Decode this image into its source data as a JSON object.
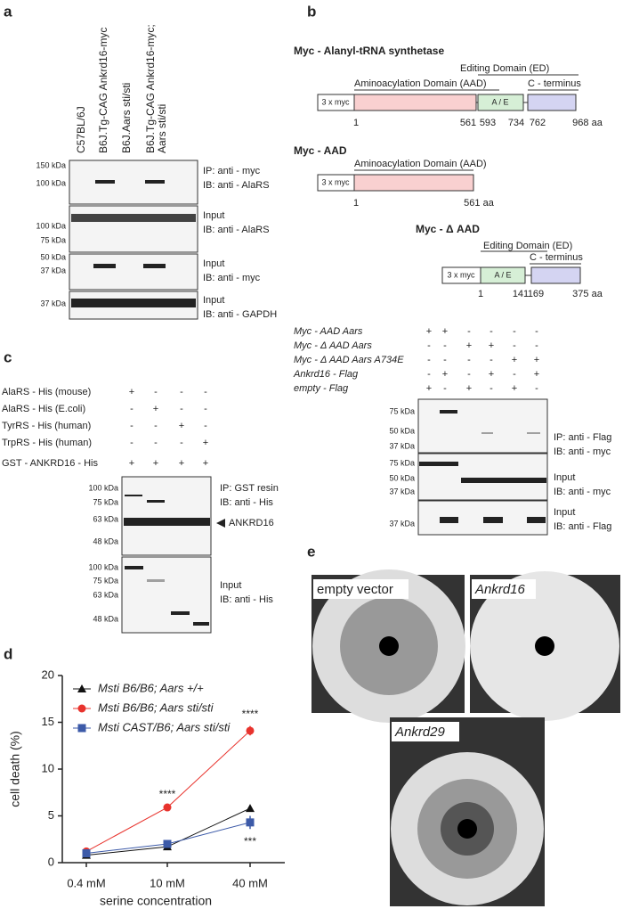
{
  "panel_a": {
    "label": "a",
    "columns": [
      [
        "C57BL/6J"
      ],
      [
        "B6J.Tg-CAG Ankrd16-myc"
      ],
      [
        "B6J.Aars sti/sti"
      ],
      [
        "B6J.Tg-CAG Ankrd16-myc;",
        "Aars sti/sti"
      ]
    ],
    "blots": [
      {
        "markers": [
          "150 kDa",
          "100 kDa"
        ],
        "lines": [
          "IP: anti - myc",
          "IB: anti - AlaRS"
        ]
      },
      {
        "markers": [
          "100 kDa",
          "75 kDa"
        ],
        "lines": [
          "Input",
          "IB: anti - AlaRS"
        ]
      },
      {
        "markers": [
          "50 kDa",
          "37 kDa"
        ],
        "lines": [
          "Input",
          "IB: anti - myc"
        ]
      },
      {
        "markers": [
          "37 kDa"
        ],
        "lines": [
          "Input",
          "IB: anti - GAPDH"
        ]
      }
    ]
  },
  "panel_b": {
    "label": "b",
    "constructs": [
      {
        "title": "Myc - Alanyl-tRNA synthetase",
        "tag": "3 x myc",
        "domains": [
          "Aminoacylation Domain (AAD)",
          "Editing Domain (ED)",
          "C - terminus"
        ],
        "box": "A / E",
        "positions": [
          "1",
          "561",
          "593",
          "734",
          "762",
          "968 aa"
        ]
      },
      {
        "title": "Myc - AAD",
        "tag": "3 x myc",
        "domains": [
          "Aminoacylation Domain (AAD)"
        ],
        "positions": [
          "1",
          "561 aa"
        ]
      },
      {
        "title": "Myc - Δ AAD",
        "tag": "3 x myc",
        "domains": [
          "Editing Domain (ED)",
          "C - terminus"
        ],
        "box": "A / E",
        "positions": [
          "1",
          "141",
          "169",
          "375 aa"
        ]
      }
    ],
    "conditions": [
      {
        "label": "Myc - AAD Aars",
        "signs": [
          "+",
          "+",
          "-",
          "-",
          "-",
          "-"
        ]
      },
      {
        "label": "Myc - Δ AAD Aars",
        "signs": [
          "-",
          "-",
          "+",
          "+",
          "-",
          "-"
        ]
      },
      {
        "label": "Myc - Δ AAD Aars A734E",
        "signs": [
          "-",
          "-",
          "-",
          "-",
          "+",
          "+"
        ]
      },
      {
        "label": "Ankrd16 - Flag",
        "signs": [
          "-",
          "+",
          "-",
          "+",
          "-",
          "+"
        ]
      },
      {
        "label": "empty - Flag",
        "signs": [
          "+",
          "-",
          "+",
          "-",
          "+",
          "-"
        ]
      }
    ],
    "blots": [
      {
        "markers": [
          "75 kDa",
          "50 kDa",
          "37 kDa"
        ],
        "lines": [
          "IP: anti - Flag",
          "IB: anti - myc"
        ]
      },
      {
        "markers": [
          "75 kDa",
          "50 kDa",
          "37 kDa"
        ],
        "lines": [
          "Input",
          "IB: anti - myc"
        ]
      },
      {
        "markers": [
          "37 kDa"
        ],
        "lines": [
          "Input",
          "IB: anti - Flag"
        ]
      }
    ]
  },
  "panel_c": {
    "label": "c",
    "conditions": [
      {
        "label": "AlaRS - His (mouse)",
        "signs": [
          "+",
          "-",
          "-",
          "-"
        ]
      },
      {
        "label": "AlaRS - His (E.coli)",
        "signs": [
          "-",
          "+",
          "-",
          "-"
        ]
      },
      {
        "label": "TyrRS - His (human)",
        "signs": [
          "-",
          "-",
          "+",
          "-"
        ]
      },
      {
        "label": "TrpRS - His (human)",
        "signs": [
          "-",
          "-",
          "-",
          "+"
        ]
      },
      {
        "label": "GST - ANKRD16 - His",
        "signs": [
          "+",
          "+",
          "+",
          "+"
        ]
      }
    ],
    "blots": [
      {
        "markers": [
          "100 kDa",
          "75 kDa",
          "63 kDa",
          "48 kDa"
        ],
        "lines": [
          "IP: GST resin",
          "IB: anti - His"
        ],
        "arrow": "ANKRD16"
      },
      {
        "markers": [
          "100 kDa",
          "75 kDa",
          "63 kDa",
          "48 kDa"
        ],
        "lines": [
          "Input",
          "IB: anti - His"
        ]
      }
    ]
  },
  "chart_data": {
    "type": "line",
    "label": "d",
    "x_label": "serine concentration",
    "y_label": "cell death (%)",
    "categories": [
      "0.4 mM",
      "10 mM",
      "40 mM"
    ],
    "series": [
      {
        "name": "Msti B6/B6; Aars +/+",
        "color": "#111111",
        "marker": "triangle",
        "values": [
          0.8,
          1.7,
          5.8
        ],
        "errors": [
          0.2,
          0.2,
          0.3
        ]
      },
      {
        "name": "Msti B6/B6; Aars sti/sti",
        "color": "#e8332d",
        "marker": "circle",
        "values": [
          1.2,
          5.9,
          14.1
        ],
        "errors": [
          0.2,
          0.2,
          0.5
        ]
      },
      {
        "name": "Msti CAST/B6; Aars sti/sti",
        "color": "#3c5aa8",
        "marker": "square",
        "values": [
          1.0,
          2.0,
          4.3
        ],
        "errors": [
          0.2,
          0.3,
          0.7
        ]
      }
    ],
    "annotations": [
      "****",
      "****",
      "***"
    ],
    "ylim": [
      0,
      20
    ],
    "yticks": [
      0,
      5,
      10,
      15,
      20
    ]
  },
  "panel_e": {
    "label": "e",
    "plates": [
      "empty vector",
      "Ankrd16",
      "Ankrd29"
    ]
  }
}
